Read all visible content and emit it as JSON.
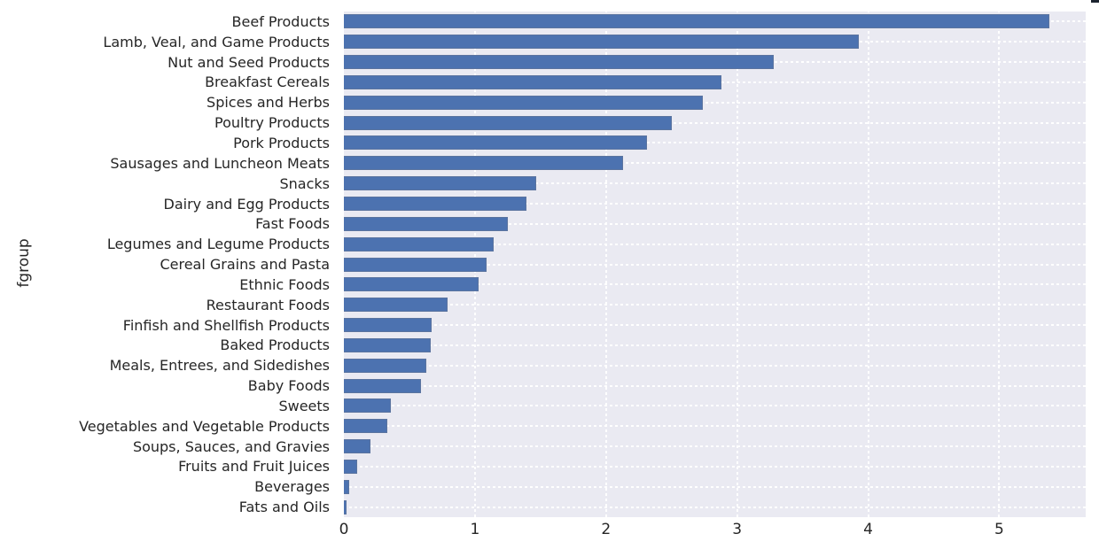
{
  "chart_data": {
    "type": "bar",
    "orientation": "horizontal",
    "title": "",
    "xlabel": "",
    "ylabel": "fgroup",
    "categories": [
      "Beef Products",
      "Lamb, Veal, and Game Products",
      "Nut and Seed Products",
      "Breakfast Cereals",
      "Spices and Herbs",
      "Poultry Products",
      "Pork Products",
      "Sausages and Luncheon Meats",
      "Snacks",
      "Dairy and Egg Products",
      "Fast Foods",
      "Legumes and Legume Products",
      "Cereal Grains and Pasta",
      "Ethnic Foods",
      "Restaurant Foods",
      "Finfish and Shellfish Products",
      "Baked Products",
      "Meals, Entrees, and Sidedishes",
      "Baby Foods",
      "Sweets",
      "Vegetables and Vegetable Products",
      "Soups, Sauces, and Gravies",
      "Fruits and Fruit Juices",
      "Beverages",
      "Fats and Oils"
    ],
    "values": [
      5.38,
      3.93,
      3.28,
      2.88,
      2.74,
      2.5,
      2.31,
      2.13,
      1.47,
      1.39,
      1.25,
      1.14,
      1.09,
      1.03,
      0.79,
      0.67,
      0.66,
      0.63,
      0.59,
      0.36,
      0.33,
      0.2,
      0.1,
      0.04,
      0.02
    ],
    "xticks": [
      "0",
      "1",
      "2",
      "3",
      "4",
      "5"
    ],
    "xlim": [
      0,
      5.66
    ],
    "grid": true,
    "legend": false,
    "bar_color": "#4C72B0",
    "plot_background": "#EAEAF2",
    "grid_color": "#FFFFFF",
    "text_color": "#262626"
  }
}
